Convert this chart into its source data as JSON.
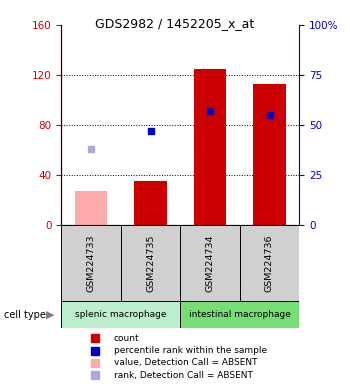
{
  "title": "GDS2982 / 1452205_x_at",
  "samples": [
    "GSM224733",
    "GSM224735",
    "GSM224734",
    "GSM224736"
  ],
  "groups": [
    {
      "label": "splenic macrophage",
      "color": "#aaeaaa",
      "samples": [
        0,
        1
      ]
    },
    {
      "label": "intestinal macrophage",
      "color": "#66cc66",
      "samples": [
        2,
        3
      ]
    }
  ],
  "count_values": [
    null,
    35,
    125,
    113
  ],
  "count_absent": [
    27,
    null,
    null,
    null
  ],
  "rank_values": [
    null,
    47,
    57,
    55
  ],
  "rank_absent": [
    38,
    null,
    null,
    null
  ],
  "ylim_left": [
    0,
    160
  ],
  "ylim_right": [
    0,
    100
  ],
  "left_ticks": [
    0,
    40,
    80,
    120,
    160
  ],
  "right_ticks": [
    0,
    25,
    50,
    75,
    100
  ],
  "right_tick_labels": [
    "0",
    "25",
    "50",
    "75",
    "100%"
  ],
  "color_count": "#cc0000",
  "color_count_absent": "#ffaaaa",
  "color_rank": "#0000cc",
  "color_rank_absent": "#aaaadd",
  "bg_plot": "#ffffff",
  "bg_sample_row": "#d0d0d0",
  "splenic_color": "#bbeecc",
  "intestinal_color": "#77dd77"
}
